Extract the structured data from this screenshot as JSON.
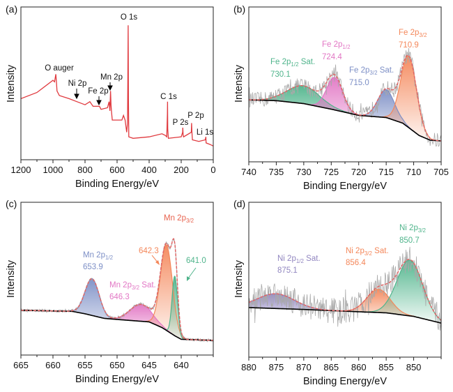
{
  "chart_data": [
    {
      "panel": "a",
      "type": "line",
      "panel_label": "(a)",
      "xlabel": "Binding Energy/eV",
      "ylabel": "Intensity",
      "xlim": [
        1200,
        0
      ],
      "ylim": [
        0,
        100
      ],
      "x_ticks": [
        1200,
        1000,
        800,
        600,
        400,
        200,
        0
      ],
      "minor_step": 100,
      "color": "#e0393e",
      "series": [
        {
          "x": [
            1200,
            1100,
            1000,
            990,
            982,
            978,
            975,
            960,
            900,
            850,
            800,
            770,
            750,
            710,
            700,
            660,
            650,
            645,
            641,
            638,
            635,
            630,
            570,
            560,
            550,
            540,
            535,
            533,
            531,
            529,
            527,
            500,
            400,
            320,
            300,
            290,
            286,
            285,
            284,
            280,
            200,
            191,
            190,
            188,
            185,
            137,
            135,
            133,
            130,
            90,
            50,
            46,
            45,
            20,
            0
          ],
          "y": [
            40,
            44,
            52,
            51,
            56,
            50,
            45,
            42,
            40,
            38,
            36,
            38,
            35,
            35,
            33,
            34,
            38,
            32,
            45,
            36,
            32,
            26,
            26,
            29,
            26,
            18,
            24,
            50,
            88,
            40,
            15,
            14,
            15,
            17,
            16,
            15,
            30,
            38,
            20,
            14,
            15,
            18,
            21,
            16,
            15,
            18,
            24,
            18,
            13,
            12,
            13,
            15,
            11,
            10,
            9
          ]
        }
      ],
      "annotations": {
        "o1s": "O 1s",
        "oauger": "O auger",
        "ni2p": "Ni 2p",
        "fe2p": "Fe 2p",
        "mn2p": "Mn 2p",
        "c1s": "C 1s",
        "p2s": "P 2s",
        "p2p": "P 2p",
        "li1s": "Li 1s"
      }
    },
    {
      "panel": "b",
      "type": "line",
      "panel_label": "(b)",
      "xlabel": "Binding Energy/eV",
      "ylabel": "Intensity",
      "xlim": [
        740,
        705
      ],
      "ylim": [
        0,
        100
      ],
      "x_ticks": [
        740,
        735,
        730,
        725,
        720,
        715,
        710,
        705
      ],
      "minor_step": 2.5,
      "background": {
        "x": [
          740,
          735,
          730,
          725,
          720,
          715,
          712,
          709,
          707,
          705
        ],
        "y": [
          40,
          39.5,
          37.6,
          34,
          30,
          28.6,
          25,
          17,
          14,
          13.5
        ]
      },
      "peaks": [
        {
          "label": "Fe 2p",
          "sub": "1/2",
          "suffix": " Sat.",
          "value": "730.1",
          "center": 730.1,
          "height": 11.5,
          "fwhm": 7,
          "color": "#4fb48b"
        },
        {
          "label": "Fe 2p",
          "sub": "1/2",
          "suffix": "",
          "value": "724.4",
          "center": 724.4,
          "height": 21,
          "fwhm": 3.4,
          "color": "#e276c4"
        },
        {
          "label": "Fe 2p",
          "sub": "3/2",
          "suffix": " Sat.",
          "value": "715.0",
          "center": 715.0,
          "height": 18,
          "fwhm": 3.6,
          "color": "#7d8fc6"
        },
        {
          "label": "Fe 2p",
          "sub": "3/2",
          "suffix": "",
          "value": "710.9",
          "center": 710.9,
          "height": 46,
          "fwhm": 3.4,
          "color": "#f4875a"
        }
      ]
    },
    {
      "panel": "c",
      "type": "line",
      "panel_label": "(c)",
      "xlabel": "Binding Energy/eV",
      "ylabel": "Intensity",
      "xlim": [
        665,
        635
      ],
      "ylim": [
        0,
        100
      ],
      "x_ticks": [
        665,
        660,
        655,
        650,
        645,
        640
      ],
      "minor_step": 2.5,
      "background": {
        "x": [
          665,
          657,
          655,
          652,
          650,
          645,
          643,
          641,
          640,
          635
        ],
        "y": [
          29.3,
          28.6,
          27,
          24,
          23.3,
          21.7,
          18,
          12.6,
          10.3,
          9.6
        ]
      },
      "envelope_label": {
        "label": "Mn 2p",
        "sub": "3/2",
        "color": "#e8634f"
      },
      "peaks": [
        {
          "label": "Mn 2p",
          "sub": "1/2",
          "suffix": "",
          "value": "653.9",
          "center": 653.9,
          "height": 24,
          "fwhm": 2.6,
          "color": "#7d8fc6"
        },
        {
          "label": "Mn 2p",
          "sub": "3/2",
          "suffix": " Sat.",
          "value": "646.3",
          "center": 646.3,
          "height": 11,
          "fwhm": 4,
          "color": "#e276c4"
        },
        {
          "label": "",
          "sub": "",
          "suffix": "",
          "value": "642.3",
          "center": 642.3,
          "height": 56,
          "fwhm": 2.2,
          "color": "#f4875a"
        },
        {
          "label": "",
          "sub": "",
          "suffix": "",
          "value": "641.0",
          "center": 641.0,
          "height": 39,
          "fwhm": 1.0,
          "color": "#4fb48b"
        }
      ]
    },
    {
      "panel": "d",
      "type": "line",
      "panel_label": "(d)",
      "xlabel": "Binding Energy/eV",
      "ylabel": "Intensity",
      "xlim": [
        880,
        845
      ],
      "ylim": [
        0,
        100
      ],
      "x_ticks": [
        880,
        875,
        870,
        865,
        860,
        855,
        850
      ],
      "minor_step": 2.5,
      "background": {
        "x": [
          880,
          870,
          860,
          855,
          850,
          845
        ],
        "y": [
          32,
          30.8,
          29.3,
          28.6,
          26.3,
          22
        ]
      },
      "peaks": [
        {
          "label": "Ni 2p",
          "sub": "1/2",
          "suffix": " Sat.",
          "value": "875.1",
          "center": 875.1,
          "height": 9.5,
          "fwhm": 8,
          "color": "#9186c0"
        },
        {
          "label": "Ni 2p",
          "sub": "3/2",
          "suffix": " Sat.",
          "value": "856.4",
          "center": 856.4,
          "height": 15,
          "fwhm": 5,
          "color": "#f4875a"
        },
        {
          "label": "Ni 2p",
          "sub": "3/2",
          "suffix": "",
          "value": "850.7",
          "center": 850.7,
          "height": 36,
          "fwhm": 5.5,
          "color": "#4fb48b"
        }
      ]
    }
  ],
  "colors": {
    "raw": "#a9a9a9",
    "envelope": "#e06565",
    "background": "#000000"
  }
}
